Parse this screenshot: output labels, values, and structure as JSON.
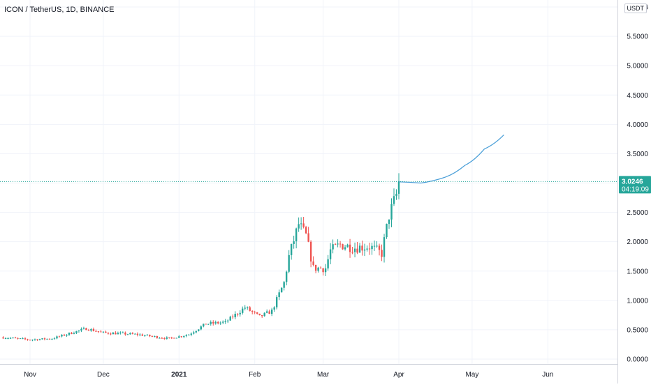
{
  "title": "ICON / TetherUS, 1D, BINANCE",
  "currency": "USDT",
  "colors": {
    "up": "#26a69a",
    "down": "#ef5350",
    "projection": "#4a9fd8",
    "grid": "#f0f3fa",
    "axis_line": "#d1d4dc",
    "price_line": "#26a69a",
    "tag_bg": "#26a69a",
    "tag_text": "#ffffff"
  },
  "last_price": {
    "value": "3.0246",
    "countdown": "04:19:09"
  },
  "chart_data": {
    "type": "candlestick",
    "y_ticks": [
      "6.0000",
      "5.5000",
      "5.0000",
      "4.5000",
      "4.0000",
      "3.5000",
      "3.0000",
      "2.5000",
      "2.0000",
      "1.5000",
      "1.0000",
      "0.5000",
      "0.0000"
    ],
    "x_ticks": [
      "Nov",
      "Dec",
      "2021",
      "Feb",
      "Mar",
      "Apr",
      "May",
      "Jun"
    ],
    "ylim": [
      0,
      6
    ],
    "approx_close_path": [
      [
        "Oct 21",
        0.37
      ],
      [
        "Nov 1",
        0.33
      ],
      [
        "Nov 10",
        0.35
      ],
      [
        "Nov 24",
        0.52
      ],
      [
        "Dec 1",
        0.45
      ],
      [
        "Dec 15",
        0.42
      ],
      [
        "Dec 28",
        0.35
      ],
      [
        "Jan 5",
        0.42
      ],
      [
        "Jan 12",
        0.6
      ],
      [
        "Jan 20",
        0.63
      ],
      [
        "Jan 28",
        0.88
      ],
      [
        "Feb 3",
        0.72
      ],
      [
        "Feb 8",
        0.82
      ],
      [
        "Feb 13",
        1.3
      ],
      [
        "Feb 15",
        1.75
      ],
      [
        "Feb 19",
        2.3
      ],
      [
        "Feb 22",
        2.1
      ],
      [
        "Feb 25",
        1.55
      ],
      [
        "Mar 2",
        1.55
      ],
      [
        "Mar 4",
        1.85
      ],
      [
        "Mar 8",
        1.95
      ],
      [
        "Mar 14",
        1.9
      ],
      [
        "Mar 20",
        1.92
      ],
      [
        "Mar 25",
        1.8
      ],
      [
        "Mar 28",
        2.45
      ],
      [
        "Mar 31",
        2.8
      ],
      [
        "Apr 1",
        3.02
      ]
    ],
    "projection_curve": [
      [
        "Apr 1",
        3.02
      ],
      [
        "Apr 10",
        3.0
      ],
      [
        "Apr 20",
        3.1
      ],
      [
        "Apr 28",
        3.3
      ],
      [
        "May 6",
        3.58
      ],
      [
        "May 14",
        3.82
      ]
    ]
  }
}
